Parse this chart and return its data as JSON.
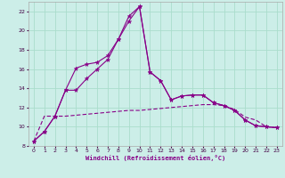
{
  "xlabel": "Windchill (Refroidissement éolien,°C)",
  "background_color": "#cceee8",
  "grid_color": "#aaddcc",
  "line_color": "#880088",
  "xlim": [
    -0.5,
    23.5
  ],
  "ylim": [
    8,
    23
  ],
  "xticks": [
    0,
    1,
    2,
    3,
    4,
    5,
    6,
    7,
    8,
    9,
    10,
    11,
    12,
    13,
    14,
    15,
    16,
    17,
    18,
    19,
    20,
    21,
    22,
    23
  ],
  "yticks": [
    8,
    10,
    12,
    14,
    16,
    18,
    20,
    22
  ],
  "line1_x": [
    0,
    1,
    2,
    3,
    4,
    5,
    6,
    7,
    8,
    9,
    10,
    11,
    12,
    13,
    14,
    15,
    16,
    17,
    18,
    19,
    20,
    21,
    22,
    23
  ],
  "line1_y": [
    8.5,
    9.5,
    11.1,
    13.8,
    16.1,
    16.5,
    16.7,
    17.4,
    19.1,
    21.5,
    22.5,
    15.7,
    14.8,
    12.8,
    13.2,
    13.3,
    13.3,
    12.5,
    12.2,
    11.7,
    10.7,
    10.1,
    10.0,
    9.9
  ],
  "line2_x": [
    0,
    1,
    2,
    3,
    4,
    5,
    6,
    7,
    8,
    9,
    10,
    11,
    12,
    13,
    14,
    15,
    16,
    17,
    18,
    19,
    20,
    21,
    22,
    23
  ],
  "line2_y": [
    8.5,
    9.5,
    11.1,
    13.8,
    13.8,
    15.0,
    16.0,
    17.0,
    19.1,
    21.0,
    22.5,
    15.7,
    14.8,
    12.8,
    13.2,
    13.3,
    13.3,
    12.5,
    12.2,
    11.7,
    10.7,
    10.1,
    10.0,
    9.9
  ],
  "line3_x": [
    0,
    1,
    2,
    3,
    4,
    5,
    6,
    7,
    8,
    9,
    10,
    11,
    12,
    13,
    14,
    15,
    16,
    17,
    18,
    19,
    20,
    21,
    22,
    23
  ],
  "line3_y": [
    8.5,
    11.1,
    11.1,
    11.1,
    11.2,
    11.3,
    11.4,
    11.5,
    11.6,
    11.7,
    11.7,
    11.8,
    11.9,
    12.0,
    12.1,
    12.2,
    12.3,
    12.3,
    12.2,
    11.8,
    11.0,
    10.7,
    10.0,
    9.9
  ]
}
